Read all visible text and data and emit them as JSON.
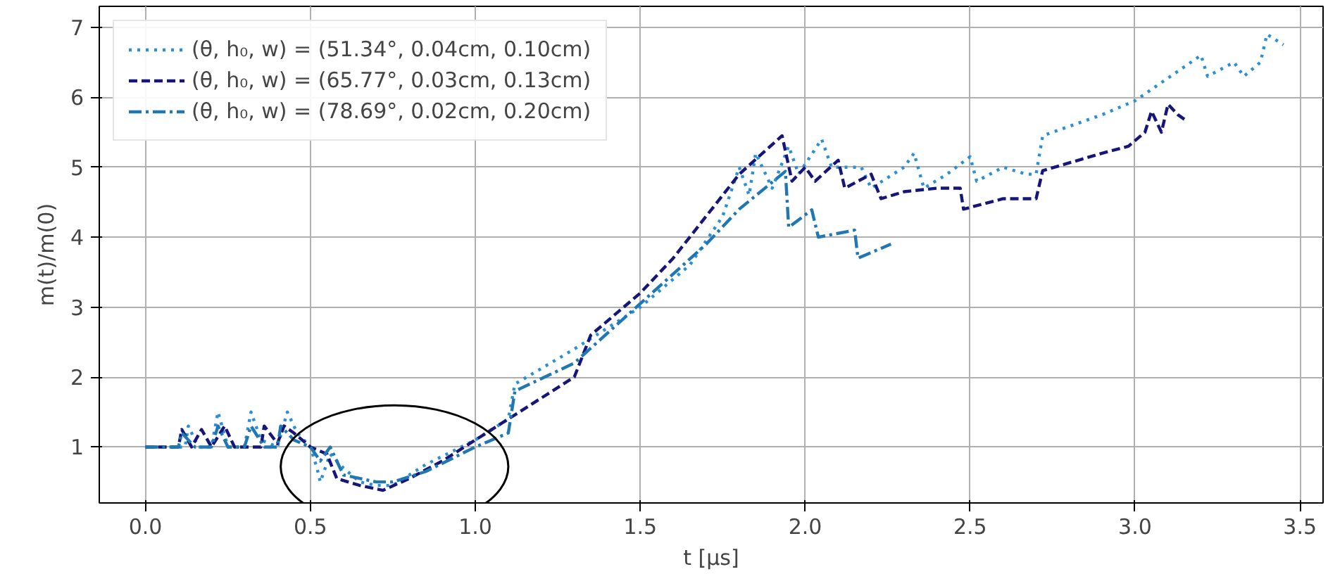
{
  "chart_data": {
    "type": "line",
    "xlabel": "t [μs]",
    "ylabel": "m(t)/m(0)",
    "xlim": [
      -0.14,
      3.57
    ],
    "ylim": [
      0.2,
      7.3
    ],
    "xticks": [
      {
        "value": 0,
        "label": "0.0"
      },
      {
        "value": 0.5,
        "label": "0.5"
      },
      {
        "value": 1,
        "label": "1.0"
      },
      {
        "value": 1.5,
        "label": "1.5"
      },
      {
        "value": 2,
        "label": "2.0"
      },
      {
        "value": 2.5,
        "label": "2.5"
      },
      {
        "value": 3,
        "label": "3.0"
      },
      {
        "value": 3.5,
        "label": "3.5"
      }
    ],
    "yticks": [
      1,
      2,
      3,
      4,
      5,
      6,
      7
    ],
    "grid": true,
    "legend": "top left",
    "series": [
      {
        "name": "(θ, h₀, w) = (51.34°, 0.04cm, 0.10cm)",
        "color": "#2b8fd6",
        "line_style": "dotted",
        "x": [
          0,
          0.12,
          0.13,
          0.16,
          0.2,
          0.22,
          0.25,
          0.3,
          0.32,
          0.35,
          0.4,
          0.43,
          0.46,
          0.5,
          0.52,
          0.53,
          0.56,
          0.6,
          0.65,
          0.7,
          0.75,
          0.85,
          1.0,
          1.1,
          1.12,
          1.3,
          1.5,
          1.65,
          1.75,
          1.8,
          1.83,
          1.85,
          1.9,
          1.95,
          1.98,
          2.05,
          2.08,
          2.17,
          2.2,
          2.3,
          2.33,
          2.36,
          2.43,
          2.5,
          2.52,
          2.6,
          2.67,
          2.7,
          2.72,
          2.9,
          3.0,
          3.2,
          3.22,
          3.3,
          3.33,
          3.38,
          3.4,
          3.45
        ],
        "values": [
          1,
          1,
          1.3,
          1,
          1,
          1.5,
          1,
          1,
          1.5,
          1.1,
          1,
          1.5,
          1.2,
          1.0,
          0.7,
          0.5,
          0.9,
          0.7,
          0.5,
          0.45,
          0.45,
          0.75,
          1.1,
          1.4,
          1.9,
          2.4,
          3.0,
          3.6,
          4.3,
          5.0,
          4.6,
          5.2,
          4.7,
          5.3,
          4.9,
          5.4,
          5.0,
          5.0,
          4.7,
          5.0,
          5.2,
          4.7,
          4.9,
          5.15,
          4.8,
          5.0,
          4.9,
          4.9,
          5.45,
          5.75,
          5.95,
          6.6,
          6.3,
          6.5,
          6.3,
          6.5,
          6.9,
          6.75
        ]
      },
      {
        "name": "(θ, h₀, w) = (65.77°, 0.03cm, 0.13cm)",
        "color": "#16167a",
        "line_style": "dashed",
        "x": [
          0,
          0.1,
          0.11,
          0.14,
          0.17,
          0.2,
          0.24,
          0.27,
          0.35,
          0.36,
          0.4,
          0.42,
          0.45,
          0.5,
          0.55,
          0.58,
          0.65,
          0.72,
          0.8,
          0.9,
          1.0,
          1.1,
          1.2,
          1.3,
          1.35,
          1.5,
          1.6,
          1.7,
          1.8,
          1.93,
          1.96,
          2.0,
          2.03,
          2.1,
          2.12,
          2.2,
          2.23,
          2.3,
          2.4,
          2.47,
          2.48,
          2.6,
          2.7,
          2.72,
          2.9,
          2.98,
          3.03,
          3.05,
          3.08,
          3.1,
          3.13,
          3.16
        ],
        "values": [
          1,
          1,
          1.25,
          1.0,
          1.25,
          1.0,
          1.3,
          1.0,
          1.0,
          1.3,
          1.05,
          1.3,
          1.2,
          1.0,
          0.9,
          0.55,
          0.45,
          0.38,
          0.55,
          0.8,
          1.1,
          1.4,
          1.7,
          2.0,
          2.6,
          3.2,
          3.7,
          4.3,
          4.9,
          5.45,
          4.8,
          5.0,
          4.8,
          5.1,
          4.7,
          4.9,
          4.55,
          4.65,
          4.7,
          4.7,
          4.4,
          4.55,
          4.55,
          4.95,
          5.2,
          5.3,
          5.5,
          5.8,
          5.5,
          5.9,
          5.75,
          5.65
        ]
      },
      {
        "name": "(θ, h₀, w) = (78.69°, 0.02cm, 0.20cm)",
        "color": "#1f77b4",
        "line_style": "dashdot",
        "x": [
          0,
          0.1,
          0.11,
          0.15,
          0.2,
          0.22,
          0.25,
          0.3,
          0.32,
          0.36,
          0.4,
          0.41,
          0.45,
          0.5,
          0.53,
          0.56,
          0.6,
          0.7,
          0.75,
          0.85,
          1.0,
          1.1,
          1.12,
          1.3,
          1.5,
          1.7,
          1.8,
          1.94,
          1.95,
          2.02,
          2.04,
          2.15,
          2.16,
          2.26
        ],
        "values": [
          1,
          1,
          1.2,
          1.0,
          1.0,
          1.3,
          1.0,
          1.0,
          1.3,
          1.0,
          1.0,
          1.3,
          1.1,
          1.0,
          0.8,
          1.0,
          0.6,
          0.5,
          0.5,
          0.65,
          1.0,
          1.2,
          1.8,
          2.2,
          3.05,
          3.9,
          4.4,
          4.94,
          4.14,
          4.39,
          4.0,
          4.1,
          3.7,
          3.9
        ]
      }
    ]
  }
}
